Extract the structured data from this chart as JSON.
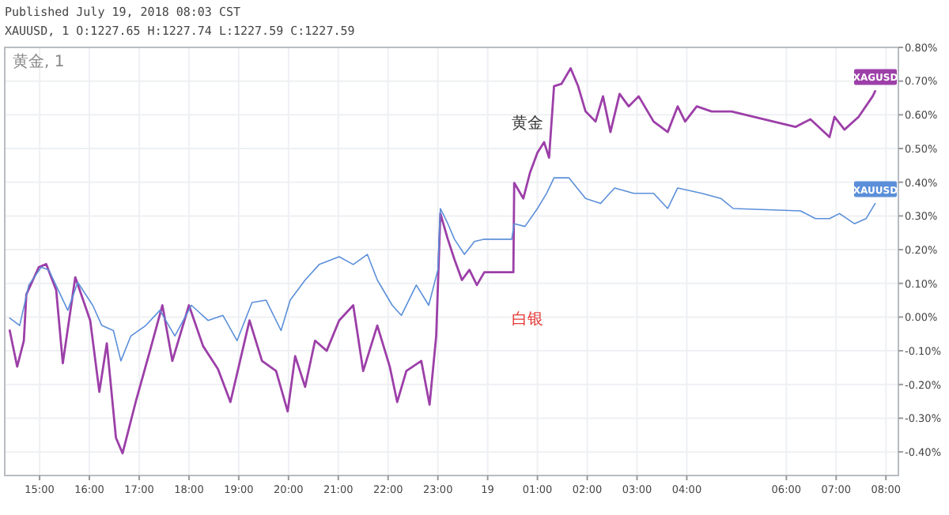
{
  "chart_data": {
    "type": "line",
    "title": "Published July 19, 2018 08:03 CST",
    "subtitle": "XAUUSD, 1 O:1227.65 H:1227.74 L:1227.59 C:1227.59",
    "annotations": [
      "黄金, 1",
      "黄金",
      "白银"
    ],
    "xlim": [
      "2018-07-18T14:18",
      "2018-07-19T08:15"
    ],
    "xticks": [
      {
        "value": "2018-07-18T15:00",
        "label": "15:00"
      },
      {
        "value": "2018-07-18T16:00",
        "label": "16:00"
      },
      {
        "value": "2018-07-18T17:00",
        "label": "17:00"
      },
      {
        "value": "2018-07-18T18:00",
        "label": "18:00"
      },
      {
        "value": "2018-07-18T19:00",
        "label": "19:00"
      },
      {
        "value": "2018-07-18T20:00",
        "label": "20:00"
      },
      {
        "value": "2018-07-18T21:00",
        "label": "21:00"
      },
      {
        "value": "2018-07-18T22:00",
        "label": "22:00"
      },
      {
        "value": "2018-07-18T23:00",
        "label": "23:00"
      },
      {
        "value": "2018-07-19T00:00",
        "label": "19"
      },
      {
        "value": "2018-07-19T01:00",
        "label": "01:00"
      },
      {
        "value": "2018-07-19T02:00",
        "label": "02:00"
      },
      {
        "value": "2018-07-19T03:00",
        "label": "03:00"
      },
      {
        "value": "2018-07-19T04:00",
        "label": "04:00"
      },
      {
        "value": "2018-07-19T06:00",
        "label": "06:00"
      },
      {
        "value": "2018-07-19T07:00",
        "label": "07:00"
      },
      {
        "value": "2018-07-19T08:00",
        "label": "08:00"
      }
    ],
    "ylim": [
      -0.47,
      0.8
    ],
    "yticks": [
      {
        "value": -0.4,
        "label": "-0.40%"
      },
      {
        "value": -0.3,
        "label": "-0.30%"
      },
      {
        "value": -0.2,
        "label": "-0.20%"
      },
      {
        "value": -0.1,
        "label": "-0.10%"
      },
      {
        "value": 0,
        "label": "0.00%"
      },
      {
        "value": 0.1,
        "label": "0.10%"
      },
      {
        "value": 0.2,
        "label": "0.20%"
      },
      {
        "value": 0.3,
        "label": "0.30%"
      },
      {
        "value": 0.4,
        "label": "0.40%"
      },
      {
        "value": 0.5,
        "label": "0.50%"
      },
      {
        "value": 0.6,
        "label": "0.60%"
      },
      {
        "value": 0.7,
        "label": "0.70%"
      },
      {
        "value": 0.8,
        "label": "0.80%"
      }
    ],
    "grid": true,
    "legend": "right",
    "marker": "none",
    "line_style": "solid",
    "series": [
      {
        "name": "XAGUSD",
        "color": "#9c3fa8",
        "x": [
          "2018-07-18T14:24",
          "2018-07-18T14:33",
          "2018-07-18T14:41",
          "2018-07-18T14:44",
          "2018-07-18T14:59",
          "2018-07-18T15:08",
          "2018-07-18T15:20",
          "2018-07-18T15:28",
          "2018-07-18T15:43",
          "2018-07-18T16:01",
          "2018-07-18T16:12",
          "2018-07-18T16:21",
          "2018-07-18T16:32",
          "2018-07-18T16:40",
          "2018-07-18T16:56",
          "2018-07-18T17:13",
          "2018-07-18T17:28",
          "2018-07-18T17:40",
          "2018-07-18T18:00",
          "2018-07-18T18:17",
          "2018-07-18T18:35",
          "2018-07-18T18:50",
          "2018-07-18T19:13",
          "2018-07-18T19:28",
          "2018-07-18T19:45",
          "2018-07-18T19:59",
          "2018-07-18T20:08",
          "2018-07-18T20:20",
          "2018-07-18T20:32",
          "2018-07-18T20:46",
          "2018-07-18T21:01",
          "2018-07-18T21:18",
          "2018-07-18T21:30",
          "2018-07-18T21:47",
          "2018-07-18T22:02",
          "2018-07-18T22:11",
          "2018-07-18T22:22",
          "2018-07-18T22:40",
          "2018-07-18T22:50",
          "2018-07-18T22:58",
          "2018-07-18T23:03",
          "2018-07-18T23:12",
          "2018-07-18T23:20",
          "2018-07-18T23:29",
          "2018-07-18T23:38",
          "2018-07-18T23:47",
          "2018-07-18T23:56",
          "2018-07-19T00:31",
          "2018-07-19T00:32",
          "2018-07-19T00:43",
          "2018-07-19T00:51",
          "2018-07-19T01:00",
          "2018-07-19T01:08",
          "2018-07-19T01:14",
          "2018-07-19T01:20",
          "2018-07-19T01:29",
          "2018-07-19T01:40",
          "2018-07-19T01:49",
          "2018-07-19T01:58",
          "2018-07-19T02:10",
          "2018-07-19T02:19",
          "2018-07-19T02:28",
          "2018-07-19T02:39",
          "2018-07-19T02:50",
          "2018-07-19T03:02",
          "2018-07-19T03:20",
          "2018-07-19T03:37",
          "2018-07-19T03:49",
          "2018-07-19T03:58",
          "2018-07-19T04:12",
          "2018-07-19T04:30",
          "2018-07-19T04:54",
          "2018-07-19T06:11",
          "2018-07-19T06:29",
          "2018-07-19T06:52",
          "2018-07-19T06:58",
          "2018-07-19T07:10",
          "2018-07-19T07:27",
          "2018-07-19T07:44",
          "2018-07-19T07:47"
        ],
        "values": [
          -0.04,
          -0.147,
          -0.07,
          0.067,
          0.148,
          0.157,
          0.08,
          -0.137,
          0.118,
          -0.01,
          -0.222,
          -0.078,
          -0.358,
          -0.404,
          -0.25,
          -0.1,
          0.035,
          -0.13,
          0.035,
          -0.086,
          -0.154,
          -0.252,
          -0.01,
          -0.13,
          -0.16,
          -0.28,
          -0.116,
          -0.207,
          -0.07,
          -0.1,
          -0.01,
          0.035,
          -0.16,
          -0.025,
          -0.147,
          -0.252,
          -0.16,
          -0.13,
          -0.26,
          -0.056,
          0.307,
          0.231,
          0.171,
          0.11,
          0.14,
          0.095,
          0.133,
          0.133,
          0.398,
          0.352,
          0.428,
          0.488,
          0.519,
          0.473,
          0.685,
          0.692,
          0.738,
          0.685,
          0.61,
          0.58,
          0.655,
          0.549,
          0.662,
          0.625,
          0.655,
          0.58,
          0.549,
          0.625,
          0.58,
          0.625,
          0.61,
          0.61,
          0.564,
          0.587,
          0.534,
          0.594,
          0.556,
          0.594,
          0.655,
          0.67
        ]
      },
      {
        "name": "XAUUSD",
        "color": "#5b8fd9",
        "x": [
          "2018-07-18T14:24",
          "2018-07-18T14:36",
          "2018-07-18T14:47",
          "2018-07-18T15:02",
          "2018-07-18T15:11",
          "2018-07-18T15:34",
          "2018-07-18T15:46",
          "2018-07-18T16:04",
          "2018-07-18T16:15",
          "2018-07-18T16:29",
          "2018-07-18T16:38",
          "2018-07-18T16:50",
          "2018-07-18T17:08",
          "2018-07-18T17:25",
          "2018-07-18T17:43",
          "2018-07-18T18:03",
          "2018-07-18T18:23",
          "2018-07-18T18:41",
          "2018-07-18T18:58",
          "2018-07-18T19:16",
          "2018-07-18T19:33",
          "2018-07-18T19:51",
          "2018-07-18T20:02",
          "2018-07-18T20:20",
          "2018-07-18T20:37",
          "2018-07-18T21:01",
          "2018-07-18T21:18",
          "2018-07-18T21:35",
          "2018-07-18T21:47",
          "2018-07-18T22:05",
          "2018-07-18T22:16",
          "2018-07-18T22:34",
          "2018-07-18T22:49",
          "2018-07-18T23:00",
          "2018-07-18T23:03",
          "2018-07-18T23:12",
          "2018-07-18T23:20",
          "2018-07-18T23:32",
          "2018-07-18T23:44",
          "2018-07-18T23:56",
          "2018-07-19T00:29",
          "2018-07-19T00:32",
          "2018-07-19T00:45",
          "2018-07-19T01:00",
          "2018-07-19T01:11",
          "2018-07-19T01:20",
          "2018-07-19T01:38",
          "2018-07-19T01:58",
          "2018-07-19T02:16",
          "2018-07-19T02:33",
          "2018-07-19T02:56",
          "2018-07-19T03:20",
          "2018-07-19T03:37",
          "2018-07-19T03:49",
          "2018-07-19T04:18",
          "2018-07-19T04:41",
          "2018-07-19T04:56",
          "2018-07-19T06:17",
          "2018-07-19T06:35",
          "2018-07-19T06:52",
          "2018-07-19T07:04",
          "2018-07-19T07:22",
          "2018-07-19T07:36",
          "2018-07-19T07:47"
        ],
        "values": [
          -0.003,
          -0.025,
          0.095,
          0.148,
          0.14,
          0.02,
          0.103,
          0.035,
          -0.025,
          -0.04,
          -0.13,
          -0.056,
          -0.025,
          0.02,
          -0.056,
          0.035,
          -0.01,
          0.005,
          -0.07,
          0.043,
          0.05,
          -0.04,
          0.05,
          0.11,
          0.156,
          0.179,
          0.156,
          0.186,
          0.11,
          0.035,
          0.005,
          0.095,
          0.035,
          0.14,
          0.322,
          0.277,
          0.231,
          0.186,
          0.224,
          0.231,
          0.231,
          0.277,
          0.269,
          0.322,
          0.367,
          0.413,
          0.413,
          0.352,
          0.337,
          0.383,
          0.367,
          0.367,
          0.322,
          0.383,
          0.367,
          0.352,
          0.322,
          0.315,
          0.292,
          0.292,
          0.307,
          0.277,
          0.292,
          0.337
        ]
      }
    ]
  }
}
